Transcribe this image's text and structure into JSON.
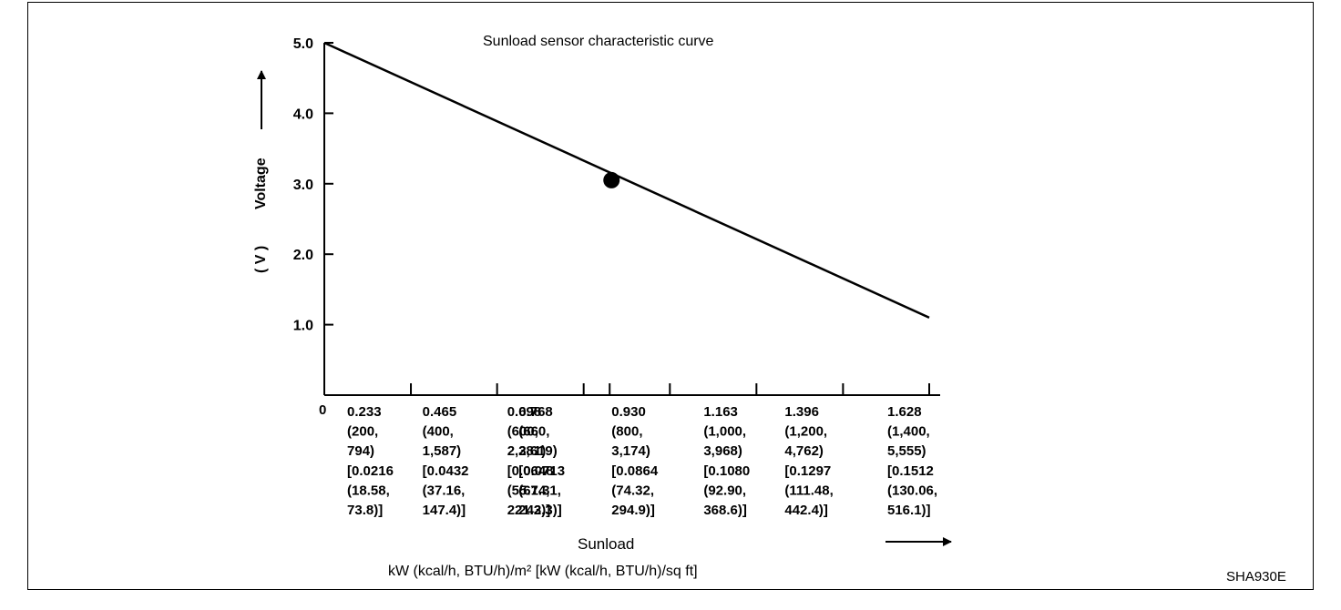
{
  "figure_code": "SHA930E",
  "chart_data": {
    "type": "line",
    "title": "Sunload sensor characteristic curve",
    "xlabel": "Sunload",
    "xunits": "kW (kcal/h, BTU/h)/m² [kW (kcal/h, BTU/h)/sq ft]",
    "ylabel": "Voltage",
    "yunit": "( V )",
    "origin_label": "0",
    "ylim": [
      0,
      5.0
    ],
    "xlim": [
      0,
      1.628
    ],
    "yticks": [
      "5.0",
      "4.0",
      "3.0",
      "2.0",
      "1.0"
    ],
    "ytick_values": [
      5.0,
      4.0,
      3.0,
      2.0,
      1.0
    ],
    "xticks": [
      {
        "value": 0.233,
        "lines": [
          "0.233",
          "(200,",
          "794)",
          "[0.0216",
          "(18.58,",
          "73.8)]"
        ]
      },
      {
        "value": 0.465,
        "lines": [
          "0.465",
          "(400,",
          "1,587)",
          "[0.0432",
          "(37.16,",
          "147.4)]"
        ]
      },
      {
        "value": 0.698,
        "lines": [
          "0.698",
          "(600,",
          "2,381)",
          "[0.0648",
          "(55.74,",
          "221.2)]"
        ]
      },
      {
        "value": 0.768,
        "lines": [
          "0.768",
          "(660,",
          "2,619)",
          "[0.0713",
          "(61.31,",
          "243.3)]"
        ]
      },
      {
        "value": 0.93,
        "lines": [
          "0.930",
          "(800,",
          "3,174)",
          "[0.0864",
          "(74.32,",
          "294.9)]"
        ]
      },
      {
        "value": 1.163,
        "lines": [
          "1.163",
          "(1,000,",
          "3,968)",
          "[0.1080",
          "(92.90,",
          "368.6)]"
        ]
      },
      {
        "value": 1.396,
        "lines": [
          "1.396",
          "(1,200,",
          "4,762)",
          "[0.1297",
          "(111.48,",
          "442.4)]"
        ]
      },
      {
        "value": 1.628,
        "lines": [
          "1.628",
          "(1,400,",
          "5,555)",
          "[0.1512",
          "(130.06,",
          "516.1)]"
        ]
      }
    ],
    "series": [
      {
        "x": [
          0,
          1.628
        ],
        "y": [
          5.0,
          1.1
        ]
      }
    ],
    "marker": {
      "x": 0.768,
      "y": 3.05
    },
    "grid": false,
    "legend": "none"
  }
}
